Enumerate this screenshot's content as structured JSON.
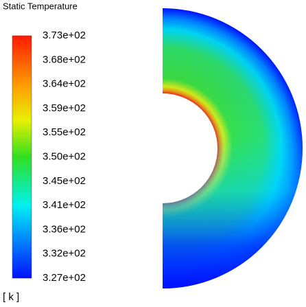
{
  "title": "Static Temperature",
  "colorbar": {
    "labels": [
      "3.73e+02",
      "3.68e+02",
      "3.64e+02",
      "3.59e+02",
      "3.55e+02",
      "3.50e+02",
      "3.45e+02",
      "3.41e+02",
      "3.36e+02",
      "3.32e+02",
      "3.27e+02"
    ],
    "unit": "[ k ]"
  }
}
